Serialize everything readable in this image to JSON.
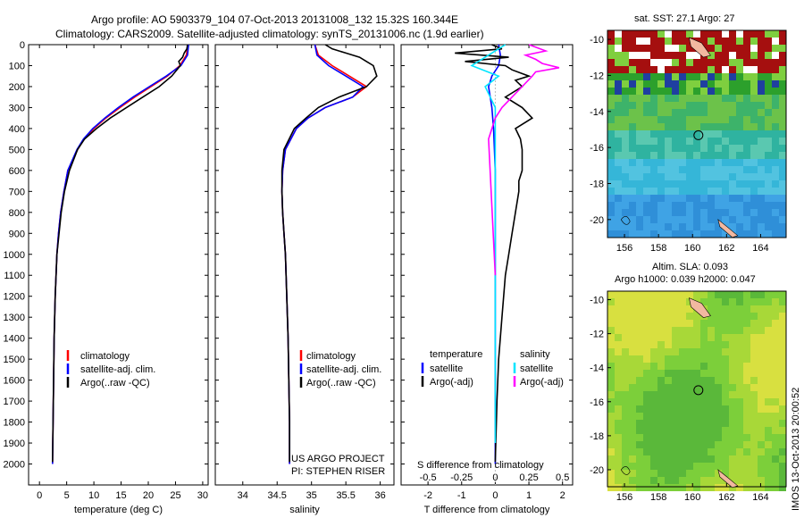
{
  "header": {
    "line1": "Argo profile: AO 5903379_104 07-Oct-2013 20131008_132 15.32S 160.344E",
    "line2": "Climatology: CARS2009. Satellite-adjusted climatology: synTS_20131006.nc (1.9d earlier)"
  },
  "timestamp": "IMOS 13-Oct-2013 20:00:52",
  "colors": {
    "climatology": "#ff0000",
    "satellite": "#0000ff",
    "argo": "#000000",
    "sal_satellite": "#00e5ff",
    "sal_argo": "#ff00ff"
  },
  "chart_data": [
    {
      "type": "line",
      "xlabel": "temperature (deg C)",
      "ylabel": "",
      "xlim": [
        -2,
        31
      ],
      "ylim": [
        2100,
        0
      ],
      "xticks": [
        "0",
        "5",
        "10",
        "15",
        "20",
        "25",
        "30"
      ],
      "yticks": [
        "0",
        "100",
        "200",
        "300",
        "400",
        "500",
        "600",
        "700",
        "800",
        "900",
        "1000",
        "1100",
        "1200",
        "1300",
        "1400",
        "1500",
        "1600",
        "1700",
        "1800",
        "1900",
        "2000"
      ],
      "legend": [
        "climatology",
        "satellite-adj. clim.",
        "Argo(..raw -QC)"
      ],
      "legend_position": "lower-center",
      "series": [
        {
          "name": "climatology",
          "color": "#ff0000",
          "x": [
            27.3,
            27.0,
            25.8,
            23.5,
            20.5,
            17.5,
            14.8,
            12.2,
            10.0,
            8.2,
            7.0,
            5.2,
            4.5,
            3.9,
            3.5,
            3.2,
            2.9,
            2.7,
            2.6,
            2.5,
            2.4
          ],
          "y": [
            0,
            50,
            100,
            150,
            200,
            250,
            300,
            350,
            400,
            450,
            500,
            600,
            700,
            800,
            900,
            1000,
            1200,
            1400,
            1600,
            1800,
            2000
          ]
        },
        {
          "name": "satellite-adj. clim.",
          "color": "#0000ff",
          "x": [
            27.4,
            27.2,
            26.0,
            23.3,
            20.2,
            17.2,
            14.5,
            12.0,
            9.8,
            8.1,
            6.9,
            5.2,
            4.5,
            3.9,
            3.5,
            3.2,
            2.9,
            2.7,
            2.6,
            2.5,
            2.4
          ],
          "y": [
            0,
            50,
            100,
            150,
            200,
            250,
            300,
            350,
            400,
            450,
            500,
            600,
            700,
            800,
            900,
            1000,
            1200,
            1400,
            1600,
            1800,
            2000
          ]
        },
        {
          "name": "Argo(..raw -QC)",
          "color": "#000000",
          "x": [
            27.2,
            27.1,
            26.6,
            26.3,
            25.6,
            25.9,
            24.3,
            22.0,
            19.0,
            16.0,
            13.0,
            10.5,
            8.3,
            7.0,
            5.5,
            4.6,
            4.0,
            3.6,
            3.2,
            2.9,
            2.7,
            2.6,
            2.5,
            2.4
          ],
          "y": [
            0,
            20,
            40,
            60,
            80,
            100,
            150,
            200,
            250,
            300,
            350,
            400,
            450,
            500,
            600,
            700,
            800,
            900,
            1000,
            1200,
            1400,
            1600,
            1800,
            1990
          ]
        }
      ]
    },
    {
      "type": "line",
      "xlabel": "salinity",
      "xlim": [
        33.6,
        36.2
      ],
      "ylim": [
        2100,
        0
      ],
      "xticks": [
        "34",
        "34.5",
        "35",
        "35.5",
        "36"
      ],
      "legend": [
        "climatology",
        "satellite-adj. clim.",
        "Argo(..raw -QC)"
      ],
      "legend_position": "lower-center",
      "annotation": [
        "US ARGO PROJECT",
        "PI: STEPHEN RISER"
      ],
      "series": [
        {
          "name": "climatology",
          "color": "#ff0000",
          "x": [
            35.05,
            35.1,
            35.3,
            35.55,
            35.8,
            35.6,
            35.2,
            34.95,
            34.78,
            34.62,
            34.58,
            34.57,
            34.58,
            34.6,
            34.62,
            34.64,
            34.66,
            34.67,
            34.68,
            34.68
          ],
          "y": [
            0,
            50,
            100,
            150,
            200,
            250,
            300,
            350,
            400,
            500,
            600,
            700,
            800,
            900,
            1000,
            1200,
            1400,
            1600,
            1800,
            2000
          ]
        },
        {
          "name": "satellite-adj. clim.",
          "color": "#0000ff",
          "x": [
            35.05,
            35.08,
            35.25,
            35.5,
            35.75,
            35.6,
            35.2,
            34.95,
            34.78,
            34.62,
            34.58,
            34.57,
            34.58,
            34.6,
            34.62,
            34.64,
            34.66,
            34.67,
            34.68,
            34.68
          ],
          "y": [
            0,
            50,
            100,
            150,
            200,
            250,
            300,
            350,
            400,
            500,
            600,
            700,
            800,
            900,
            1000,
            1200,
            1400,
            1600,
            1800,
            2000
          ]
        },
        {
          "name": "Argo(..raw -QC)",
          "color": "#000000",
          "x": [
            35.2,
            35.3,
            35.5,
            35.7,
            35.8,
            35.9,
            35.95,
            35.8,
            35.4,
            35.1,
            34.92,
            34.75,
            34.6,
            34.57,
            34.57,
            34.58,
            34.6,
            34.62,
            34.64,
            34.66,
            34.67,
            34.68,
            34.68
          ],
          "y": [
            0,
            20,
            40,
            60,
            80,
            100,
            150,
            200,
            250,
            300,
            350,
            400,
            500,
            600,
            700,
            800,
            900,
            1000,
            1200,
            1400,
            1600,
            1800,
            1990
          ]
        }
      ]
    },
    {
      "type": "line",
      "xlabel": "T difference from climatology",
      "xlabel2": "S difference from climatology",
      "xlim": [
        -2.8,
        2.3
      ],
      "ylim": [
        2100,
        0
      ],
      "xticks": [
        "-2",
        "-1",
        "0",
        "1",
        "2"
      ],
      "xticks2": [
        "-0.5",
        "-0.25",
        "0",
        "0.25",
        "0.5"
      ],
      "legend_groups": [
        {
          "title": "temperature",
          "items": [
            "satellite",
            "Argo(-adj)"
          ]
        },
        {
          "title": "salinity",
          "items": [
            "satellite",
            "Argo(-adj)"
          ]
        }
      ],
      "series": [
        {
          "name": "temperature satellite",
          "color": "#0000ff",
          "x": [
            0.1,
            0.15,
            0.1,
            -0.1,
            -0.2,
            -0.1,
            -0.05,
            0,
            0,
            0,
            0,
            0,
            0
          ],
          "y": [
            0,
            50,
            100,
            150,
            200,
            300,
            400,
            600,
            800,
            1000,
            1400,
            1800,
            2000
          ]
        },
        {
          "name": "temperature Argo(-adj)",
          "color": "#000000",
          "x": [
            -0.1,
            0.2,
            -1.2,
            0.4,
            -0.9,
            0.3,
            0.5,
            1.0,
            0.6,
            0.8,
            0.3,
            0.8,
            1.1,
            0.6,
            0.75,
            0.8,
            0.8,
            0.8,
            0.7,
            0.7,
            0.6,
            0.5,
            0.4,
            0.3,
            0.2,
            0.1,
            0.05,
            0
          ],
          "y": [
            0,
            20,
            40,
            60,
            80,
            100,
            120,
            150,
            170,
            200,
            250,
            300,
            350,
            400,
            450,
            500,
            550,
            600,
            650,
            700,
            800,
            900,
            1000,
            1100,
            1300,
            1500,
            1700,
            1990
          ]
        },
        {
          "name": "salinity satellite",
          "color": "#00e5ff",
          "x": [
            0.3,
            -0.2,
            -0.7,
            0.1,
            -0.3,
            0,
            0,
            0,
            0
          ],
          "y": [
            0,
            50,
            100,
            150,
            200,
            300,
            500,
            1000,
            1900
          ]
        },
        {
          "name": "salinity Argo(-adj)",
          "color": "#ff00ff",
          "x": [
            1.0,
            1.5,
            0.9,
            1.2,
            1.4,
            1.9,
            1.2,
            1.1,
            0.8,
            0.5,
            0.2,
            0,
            -0.2,
            0
          ],
          "y": [
            0,
            30,
            50,
            70,
            90,
            110,
            130,
            150,
            200,
            250,
            300,
            350,
            450,
            1100
          ]
        }
      ]
    }
  ],
  "maps": [
    {
      "title": "sat. SST: 27.1  Argo: 27",
      "xticks": [
        "156",
        "158",
        "160",
        "162",
        "164"
      ],
      "yticks": [
        "-10",
        "-12",
        "-14",
        "-16",
        "-18",
        "-20"
      ]
    },
    {
      "title1": "Altim. SLA: 0.093",
      "title2": "Argo h1000: 0.039  h2000: 0.047",
      "xticks": [
        "156",
        "158",
        "160",
        "162",
        "164"
      ],
      "yticks": [
        "-10",
        "-12",
        "-14",
        "-16",
        "-18",
        "-20"
      ]
    }
  ]
}
